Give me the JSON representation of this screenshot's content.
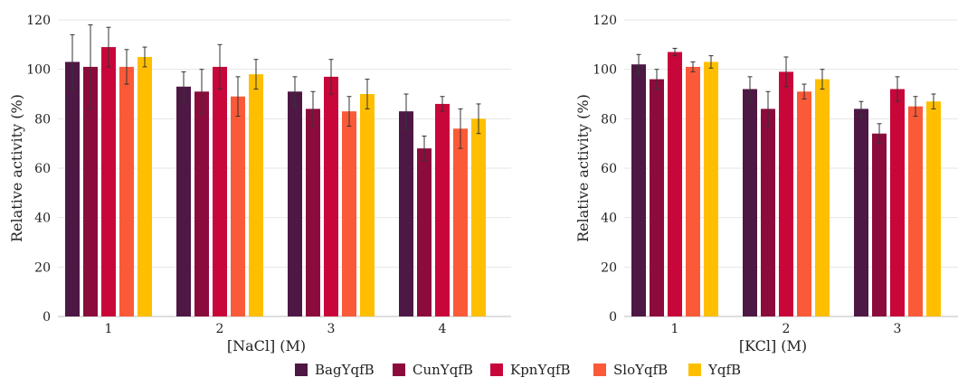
{
  "colors": {
    "BagYqfB": "#4e1844",
    "CunYqfB": "#8c0b3d",
    "KpnYqfB": "#c8063a",
    "SloYqfB": "#fa5a38",
    "YqfB": "#ffbf00"
  },
  "legend": {
    "items": [
      {
        "label": "BagYqfB",
        "color": "#4e1844"
      },
      {
        "label": "CunYqfB",
        "color": "#8c0b3d"
      },
      {
        "label": "KpnYqfB",
        "color": "#c8063a"
      },
      {
        "label": "SloYqfB",
        "color": "#fa5a38"
      },
      {
        "label": "YqfB",
        "color": "#ffbf00"
      }
    ],
    "placement": "bottom-center"
  },
  "chart_data": [
    {
      "type": "bar",
      "xlabel": "[NaCl] (M)",
      "ylabel": "Relative activity (%)",
      "ylim": [
        0,
        120
      ],
      "yticks": [
        0,
        20,
        40,
        60,
        80,
        100,
        120
      ],
      "grid": true,
      "categories": [
        "1",
        "2",
        "3",
        "4"
      ],
      "series": [
        {
          "name": "BagYqfB",
          "values": [
            103,
            93,
            91,
            83
          ],
          "errors": [
            11,
            6,
            6,
            7
          ]
        },
        {
          "name": "CunYqfB",
          "values": [
            101,
            91,
            84,
            68
          ],
          "errors": [
            17,
            9,
            7,
            5
          ]
        },
        {
          "name": "KpnYqfB",
          "values": [
            109,
            101,
            97,
            86
          ],
          "errors": [
            8,
            9,
            7,
            3
          ]
        },
        {
          "name": "SloYqfB",
          "values": [
            101,
            89,
            83,
            76
          ],
          "errors": [
            7,
            8,
            6,
            8
          ]
        },
        {
          "name": "YqfB",
          "values": [
            105,
            98,
            90,
            80
          ],
          "errors": [
            4,
            6,
            6,
            6
          ]
        }
      ]
    },
    {
      "type": "bar",
      "xlabel": "[KCl] (M)",
      "ylabel": "Relative activity (%)",
      "ylim": [
        0,
        120
      ],
      "yticks": [
        0,
        20,
        40,
        60,
        80,
        100,
        120
      ],
      "grid": true,
      "categories": [
        "1",
        "2",
        "3"
      ],
      "series": [
        {
          "name": "BagYqfB",
          "values": [
            102,
            92,
            84
          ],
          "errors": [
            4,
            5,
            3
          ]
        },
        {
          "name": "CunYqfB",
          "values": [
            96,
            84,
            74
          ],
          "errors": [
            4,
            7,
            4
          ]
        },
        {
          "name": "KpnYqfB",
          "values": [
            107,
            99,
            92
          ],
          "errors": [
            1.5,
            6,
            5
          ]
        },
        {
          "name": "SloYqfB",
          "values": [
            101,
            91,
            85
          ],
          "errors": [
            2,
            3,
            4
          ]
        },
        {
          "name": "YqfB",
          "values": [
            103,
            96,
            87
          ],
          "errors": [
            2.5,
            4,
            3
          ]
        }
      ]
    }
  ]
}
